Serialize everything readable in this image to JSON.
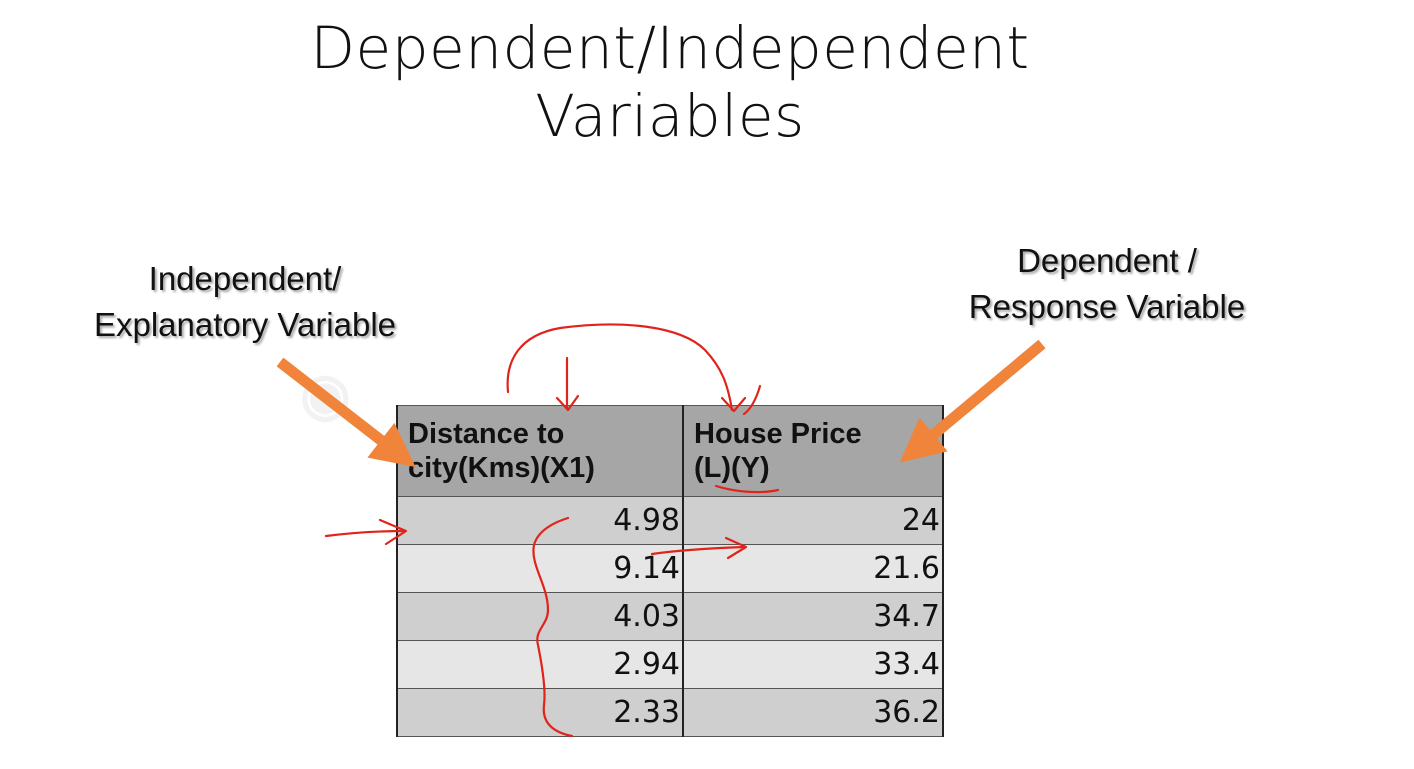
{
  "title": {
    "line1": "Dependent/Independent",
    "line2": "Variables"
  },
  "callouts": {
    "left": {
      "line1": "Independent/",
      "line2": "Explanatory Variable"
    },
    "right": {
      "line1": "Dependent /",
      "line2": "Response Variable"
    }
  },
  "table": {
    "headers": [
      {
        "line1": "Distance to",
        "line2": "city(Kms)(X1)"
      },
      {
        "line1": "House Price",
        "line2": "(L)(Y)"
      }
    ],
    "rows": [
      [
        "4.98",
        "24"
      ],
      [
        "9.14",
        "21.6"
      ],
      [
        "4.03",
        "34.7"
      ],
      [
        "2.94",
        "33.4"
      ],
      [
        "2.33",
        "36.2"
      ]
    ]
  },
  "colors": {
    "arrow": "#f0843a",
    "ink": "#e0241b",
    "header_bg": "#a6a6a6"
  }
}
